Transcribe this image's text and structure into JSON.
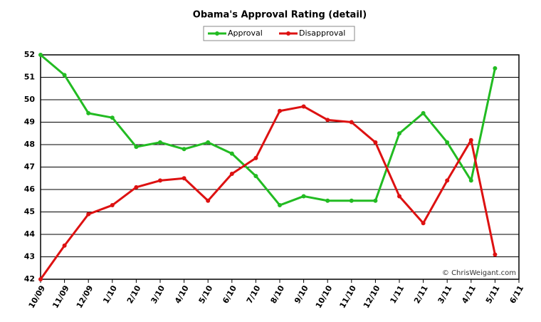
{
  "chart_data": {
    "type": "line",
    "title": "Obama's Approval Rating (detail)",
    "annotation": "© ChrisWeigant.com",
    "categories": [
      "10/09",
      "11/09",
      "12/09",
      "1/10",
      "2/10",
      "3/10",
      "4/10",
      "5/10",
      "6/10",
      "7/10",
      "8/10",
      "9/10",
      "10/10",
      "11/10",
      "12/10",
      "1/11",
      "2/11",
      "3/11",
      "4/11",
      "5/11",
      "6/11"
    ],
    "series": [
      {
        "name": "Approval",
        "color": "#22bb22",
        "values": [
          52.0,
          51.1,
          49.4,
          49.2,
          47.9,
          48.1,
          47.8,
          48.1,
          47.6,
          46.6,
          45.3,
          45.7,
          45.5,
          45.5,
          45.5,
          48.5,
          49.4,
          48.1,
          46.4,
          51.4,
          null
        ]
      },
      {
        "name": "Disapproval",
        "color": "#dd1111",
        "values": [
          42.0,
          43.5,
          44.9,
          45.3,
          46.1,
          46.4,
          46.5,
          45.5,
          46.7,
          47.4,
          49.5,
          49.7,
          49.1,
          49.0,
          48.1,
          45.7,
          44.5,
          46.4,
          48.2,
          43.1,
          null
        ]
      }
    ],
    "ylim": [
      42,
      52
    ],
    "yticks": [
      42,
      43,
      44,
      45,
      46,
      47,
      48,
      49,
      50,
      51,
      52
    ],
    "grid": true,
    "legend": "top"
  }
}
